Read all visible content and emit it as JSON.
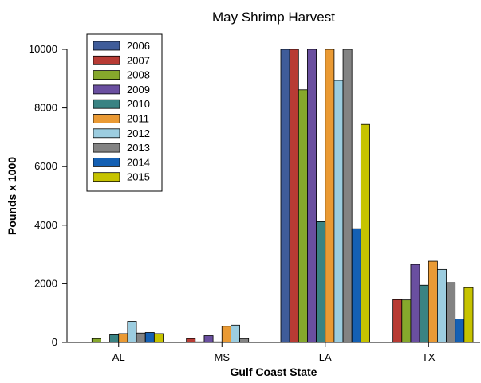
{
  "chart_data": {
    "type": "bar",
    "title": "May Shrimp Harvest",
    "xlabel": "Gulf Coast State",
    "ylabel": "Pounds x 1000",
    "categories": [
      "AL",
      "MS",
      "LA",
      "TX"
    ],
    "ylim": [
      0,
      10000
    ],
    "yticks": [
      0,
      2000,
      4000,
      6000,
      8000,
      10000
    ],
    "grid": false,
    "legend_position": "top-left",
    "series": [
      {
        "name": "2006",
        "color": "#3f5c9a",
        "values": [
          0,
          0,
          10000,
          0
        ]
      },
      {
        "name": "2007",
        "color": "#b83b34",
        "values": [
          0,
          130,
          10000,
          1460
        ]
      },
      {
        "name": "2008",
        "color": "#86a82c",
        "values": [
          130,
          20,
          8620,
          1450
        ]
      },
      {
        "name": "2009",
        "color": "#6a4fa0",
        "values": [
          0,
          230,
          10000,
          2660
        ]
      },
      {
        "name": "2010",
        "color": "#3a8383",
        "values": [
          260,
          20,
          4120,
          1950
        ]
      },
      {
        "name": "2011",
        "color": "#ea9a34",
        "values": [
          300,
          550,
          10000,
          2770
        ]
      },
      {
        "name": "2012",
        "color": "#9ccde0",
        "values": [
          720,
          590,
          8940,
          2490
        ]
      },
      {
        "name": "2013",
        "color": "#838383",
        "values": [
          320,
          130,
          10000,
          2040
        ]
      },
      {
        "name": "2014",
        "color": "#1460b4",
        "values": [
          340,
          0,
          3880,
          800
        ]
      },
      {
        "name": "2015",
        "color": "#c6c300",
        "values": [
          300,
          0,
          7440,
          1870
        ]
      }
    ]
  }
}
